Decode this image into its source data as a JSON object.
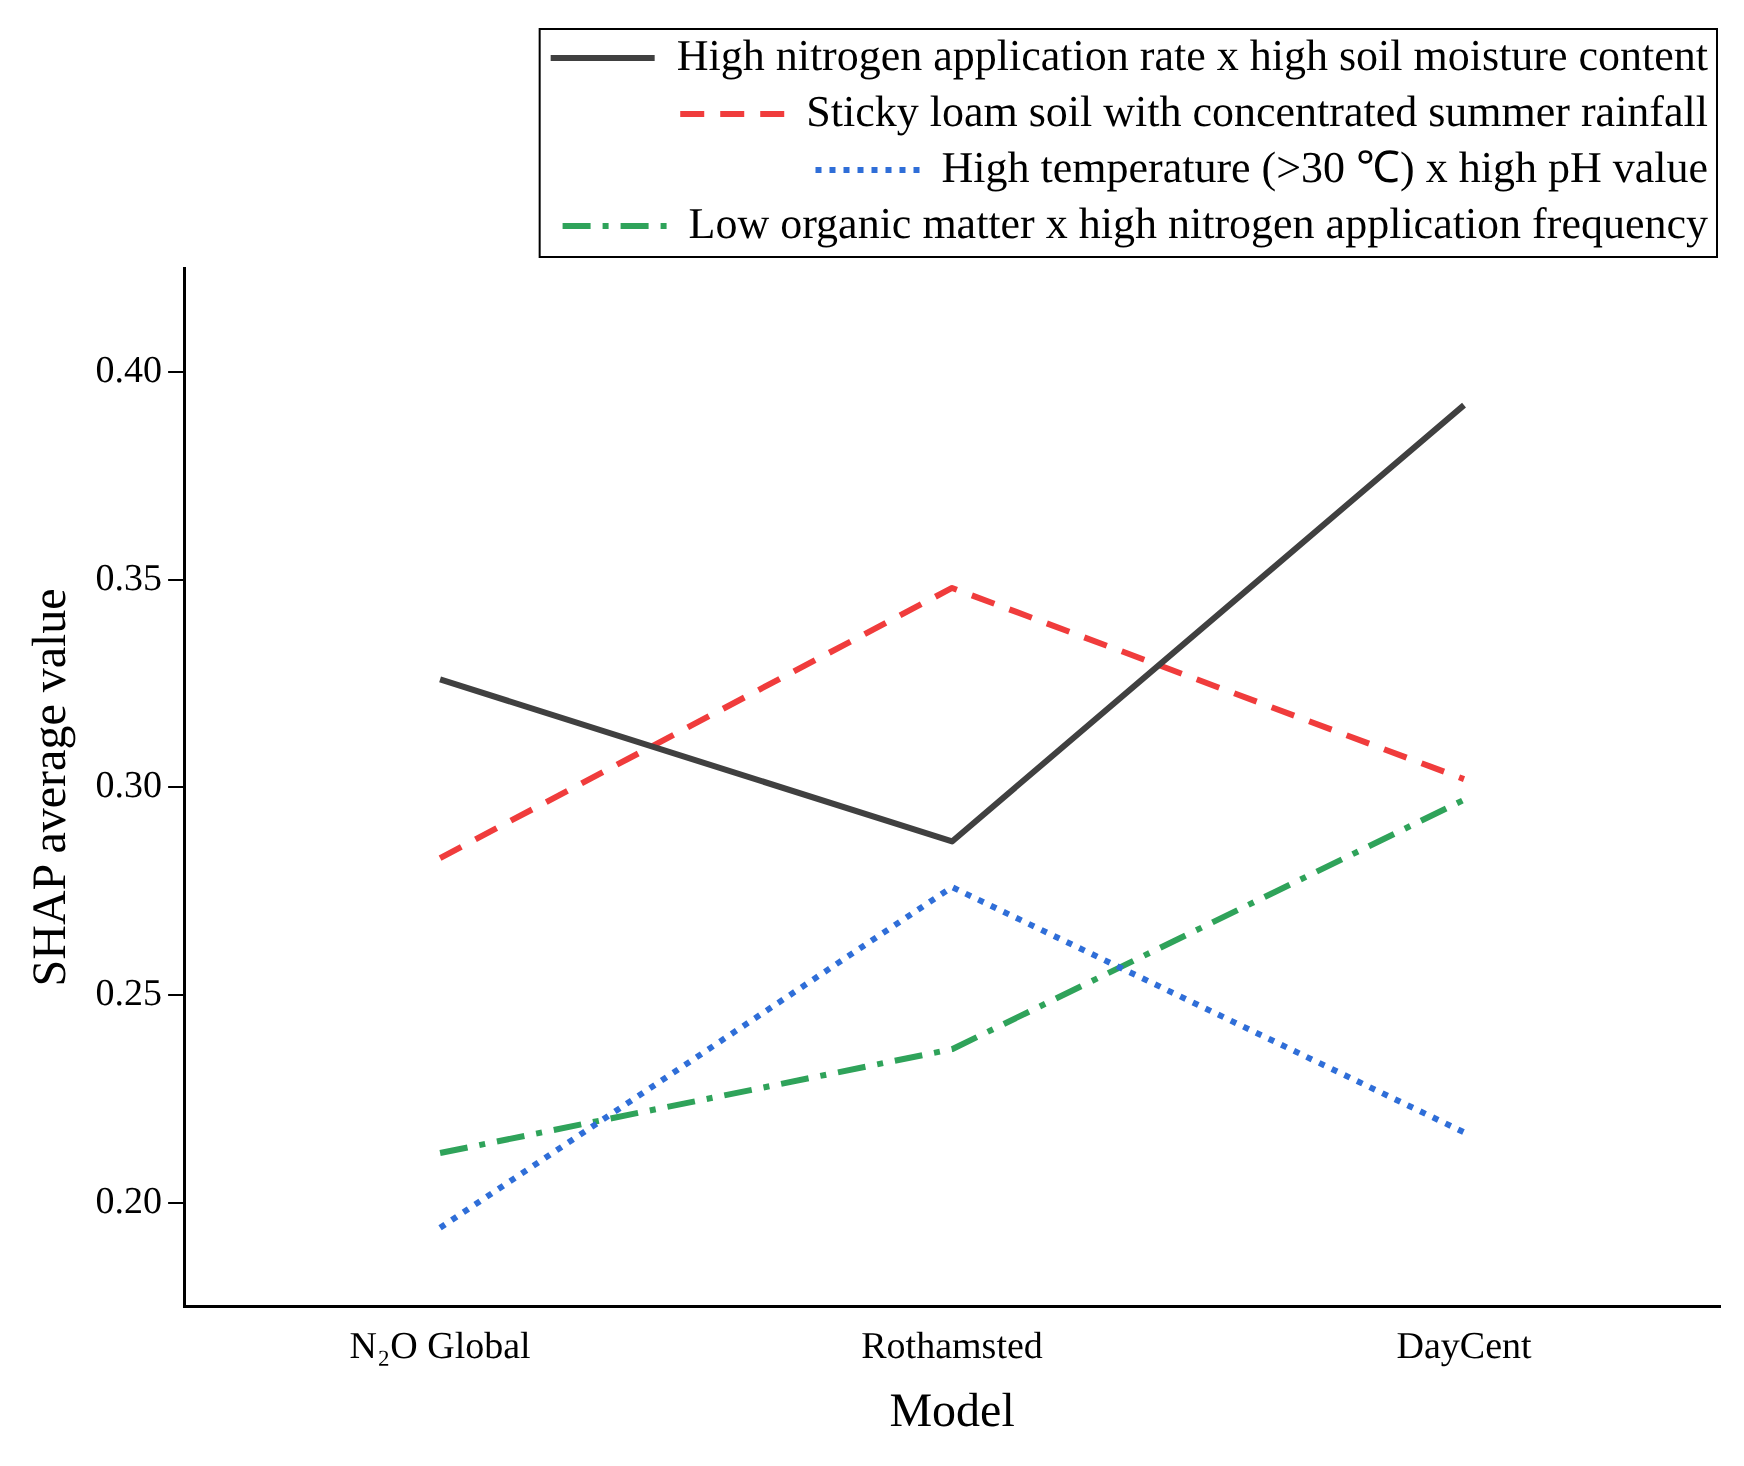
{
  "chart_data": {
    "type": "line",
    "xlabel": "Model",
    "ylabel": "SHAP average value",
    "categories": [
      "N₂O Global",
      "Rothamsted",
      "DayCent"
    ],
    "series": [
      {
        "name": "High nitrogen application rate x high soil moisture content",
        "color": "#404040",
        "line_style": "solid",
        "values": [
          0.326,
          0.287,
          0.392
        ]
      },
      {
        "name": "Sticky loam soil with concentrated summer rainfall",
        "color": "#f03c3c",
        "line_style": "dashed",
        "values": [
          0.283,
          0.348,
          0.302
        ]
      },
      {
        "name": "High temperature (>30 ℃) x high pH value",
        "color": "#2f6ed8",
        "line_style": "dotted",
        "values": [
          0.194,
          0.276,
          0.217
        ]
      },
      {
        "name": "Low organic matter x high nitrogen application frequency",
        "color": "#2fa35a",
        "line_style": "dashdot",
        "values": [
          0.212,
          0.237,
          0.297
        ]
      }
    ],
    "ylim": [
      0.175,
      0.425
    ],
    "yticks": [
      {
        "value": 0.2,
        "label": "0.20"
      },
      0.25,
      {
        "value": 0.3,
        "label": "0.30"
      },
      0.35,
      {
        "value": 0.4,
        "label": "0.40"
      }
    ],
    "grid": false,
    "legend": "top right",
    "marker": "none"
  }
}
